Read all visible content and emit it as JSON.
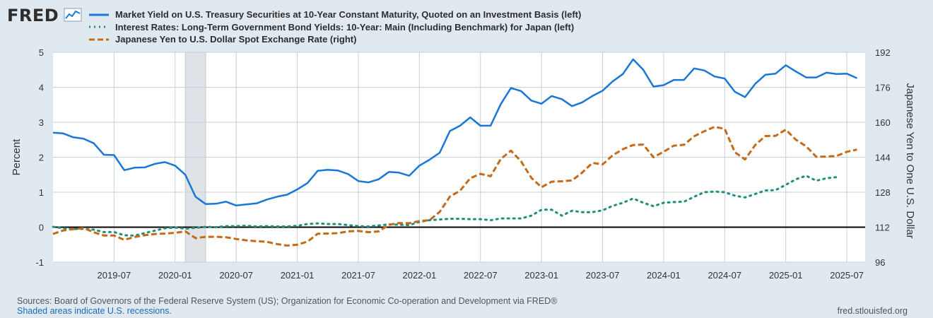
{
  "brand": {
    "logo_text": "FRED",
    "logo_icon": "trend-line-icon"
  },
  "legend": [
    {
      "label": "Market Yield on U.S. Treasury Securities at 10-Year Constant Maturity, Quoted on an Investment Basis (left)",
      "color": "#1a77d6",
      "style": "solid"
    },
    {
      "label": "Interest Rates: Long-Term Government Bond Yields: 10-Year: Main (Including Benchmark) for Japan (left)",
      "color": "#1f8f7c",
      "style": "dotted"
    },
    {
      "label": "Japanese Yen to U.S. Dollar Spot Exchange Rate (right)",
      "color": "#c46b17",
      "style": "dashed"
    }
  ],
  "footer": {
    "sources": "Sources: Board of Governors of the Federal Reserve System (US); Organization for Economic Co-operation and Development via FRED®",
    "recession_note": "Shaded areas indicate U.S. recessions.",
    "url": "fred.stlouisfed.org"
  },
  "chart_data": {
    "type": "line",
    "ylabel": "Percent",
    "y2label": "Japanese Yen to One U.S. Dollar",
    "ylim": [
      -1,
      5
    ],
    "y2lim": [
      96,
      192
    ],
    "yticks": [
      -1,
      0,
      1,
      2,
      3,
      4,
      5
    ],
    "y2ticks": [
      96,
      112,
      128,
      144,
      160,
      176,
      192
    ],
    "xlim": [
      "2019-01",
      "2025-08"
    ],
    "xticks": [
      "2019-07",
      "2020-01",
      "2020-07",
      "2021-01",
      "2021-07",
      "2022-01",
      "2022-07",
      "2023-01",
      "2023-07",
      "2024-01",
      "2024-07",
      "2025-01",
      "2025-07"
    ],
    "grid": true,
    "zero_line": 0,
    "recession": {
      "start": "2020-02",
      "end": "2020-04"
    },
    "series": [
      {
        "name": "Market Yield on U.S. Treasury Securities at 10-Year Constant Maturity, Quoted on an Investment Basis (left)",
        "axis": "left",
        "color": "#1a77d6",
        "style": "solid",
        "x": [
          "2019-01",
          "2019-02",
          "2019-03",
          "2019-04",
          "2019-05",
          "2019-06",
          "2019-07",
          "2019-08",
          "2019-09",
          "2019-10",
          "2019-11",
          "2019-12",
          "2020-01",
          "2020-02",
          "2020-03",
          "2020-04",
          "2020-05",
          "2020-06",
          "2020-07",
          "2020-08",
          "2020-09",
          "2020-10",
          "2020-11",
          "2020-12",
          "2021-01",
          "2021-02",
          "2021-03",
          "2021-04",
          "2021-05",
          "2021-06",
          "2021-07",
          "2021-08",
          "2021-09",
          "2021-10",
          "2021-11",
          "2021-12",
          "2022-01",
          "2022-02",
          "2022-03",
          "2022-04",
          "2022-05",
          "2022-06",
          "2022-07",
          "2022-08",
          "2022-09",
          "2022-10",
          "2022-11",
          "2022-12",
          "2023-01",
          "2023-02",
          "2023-03",
          "2023-04",
          "2023-05",
          "2023-06",
          "2023-07",
          "2023-08",
          "2023-09",
          "2023-10",
          "2023-11",
          "2023-12",
          "2024-01",
          "2024-02",
          "2024-03",
          "2024-04",
          "2024-05",
          "2024-06",
          "2024-07",
          "2024-08",
          "2024-09",
          "2024-10",
          "2024-11",
          "2024-12",
          "2025-01",
          "2025-02",
          "2025-03",
          "2025-04",
          "2025-05",
          "2025-06",
          "2025-07",
          "2025-08"
        ],
        "values": [
          2.7,
          2.68,
          2.57,
          2.53,
          2.4,
          2.07,
          2.06,
          1.63,
          1.7,
          1.71,
          1.81,
          1.86,
          1.76,
          1.5,
          0.87,
          0.66,
          0.67,
          0.73,
          0.62,
          0.65,
          0.68,
          0.79,
          0.87,
          0.93,
          1.08,
          1.26,
          1.61,
          1.64,
          1.62,
          1.52,
          1.32,
          1.28,
          1.37,
          1.58,
          1.56,
          1.47,
          1.76,
          1.93,
          2.13,
          2.75,
          2.9,
          3.14,
          2.9,
          2.9,
          3.52,
          3.98,
          3.89,
          3.62,
          3.53,
          3.75,
          3.66,
          3.46,
          3.57,
          3.75,
          3.9,
          4.17,
          4.38,
          4.8,
          4.5,
          4.02,
          4.06,
          4.21,
          4.21,
          4.54,
          4.48,
          4.31,
          4.25,
          3.87,
          3.72,
          4.1,
          4.36,
          4.39,
          4.63,
          4.45,
          4.28,
          4.28,
          4.42,
          4.38,
          4.39,
          4.26
        ]
      },
      {
        "name": "Interest Rates: Long-Term Government Bond Yields: 10-Year: Main (Including Benchmark) for Japan (left)",
        "axis": "left",
        "color": "#1f8f7c",
        "style": "dotted",
        "x": [
          "2019-01",
          "2019-02",
          "2019-03",
          "2019-04",
          "2019-05",
          "2019-06",
          "2019-07",
          "2019-08",
          "2019-09",
          "2019-10",
          "2019-11",
          "2019-12",
          "2020-01",
          "2020-02",
          "2020-03",
          "2020-04",
          "2020-05",
          "2020-06",
          "2020-07",
          "2020-08",
          "2020-09",
          "2020-10",
          "2020-11",
          "2020-12",
          "2021-01",
          "2021-02",
          "2021-03",
          "2021-04",
          "2021-05",
          "2021-06",
          "2021-07",
          "2021-08",
          "2021-09",
          "2021-10",
          "2021-11",
          "2021-12",
          "2022-01",
          "2022-02",
          "2022-03",
          "2022-04",
          "2022-05",
          "2022-06",
          "2022-07",
          "2022-08",
          "2022-09",
          "2022-10",
          "2022-11",
          "2022-12",
          "2023-01",
          "2023-02",
          "2023-03",
          "2023-04",
          "2023-05",
          "2023-06",
          "2023-07",
          "2023-08",
          "2023-09",
          "2023-10",
          "2023-11",
          "2023-12",
          "2024-01",
          "2024-02",
          "2024-03",
          "2024-04",
          "2024-05",
          "2024-06",
          "2024-07",
          "2024-08",
          "2024-09",
          "2024-10",
          "2024-11",
          "2024-12",
          "2025-01",
          "2025-02",
          "2025-03",
          "2025-04",
          "2025-05",
          "2025-06"
        ],
        "values": [
          0.01,
          -0.03,
          -0.05,
          -0.05,
          -0.07,
          -0.14,
          -0.14,
          -0.23,
          -0.24,
          -0.17,
          -0.1,
          -0.03,
          -0.01,
          -0.04,
          -0.02,
          0.01,
          0.0,
          0.03,
          0.03,
          0.04,
          0.02,
          0.03,
          0.02,
          0.02,
          0.04,
          0.09,
          0.11,
          0.09,
          0.09,
          0.06,
          0.03,
          0.02,
          0.05,
          0.08,
          0.07,
          0.06,
          0.15,
          0.2,
          0.22,
          0.24,
          0.24,
          0.23,
          0.23,
          0.2,
          0.25,
          0.25,
          0.25,
          0.33,
          0.5,
          0.5,
          0.33,
          0.47,
          0.43,
          0.43,
          0.48,
          0.61,
          0.7,
          0.82,
          0.7,
          0.6,
          0.7,
          0.72,
          0.73,
          0.87,
          1.0,
          1.02,
          1.0,
          0.9,
          0.85,
          0.95,
          1.05,
          1.06,
          1.21,
          1.37,
          1.47,
          1.33,
          1.4,
          1.43
        ]
      },
      {
        "name": "Japanese Yen to U.S. Dollar Spot Exchange Rate (right)",
        "axis": "right",
        "color": "#c46b17",
        "style": "dashed",
        "x": [
          "2019-01",
          "2019-02",
          "2019-03",
          "2019-04",
          "2019-05",
          "2019-06",
          "2019-07",
          "2019-08",
          "2019-09",
          "2019-10",
          "2019-11",
          "2019-12",
          "2020-01",
          "2020-02",
          "2020-03",
          "2020-04",
          "2020-05",
          "2020-06",
          "2020-07",
          "2020-08",
          "2020-09",
          "2020-10",
          "2020-11",
          "2020-12",
          "2021-01",
          "2021-02",
          "2021-03",
          "2021-04",
          "2021-05",
          "2021-06",
          "2021-07",
          "2021-08",
          "2021-09",
          "2021-10",
          "2021-11",
          "2021-12",
          "2022-01",
          "2022-02",
          "2022-03",
          "2022-04",
          "2022-05",
          "2022-06",
          "2022-07",
          "2022-08",
          "2022-09",
          "2022-10",
          "2022-11",
          "2022-12",
          "2023-01",
          "2023-02",
          "2023-03",
          "2023-04",
          "2023-05",
          "2023-06",
          "2023-07",
          "2023-08",
          "2023-09",
          "2023-10",
          "2023-11",
          "2023-12",
          "2024-01",
          "2024-02",
          "2024-03",
          "2024-04",
          "2024-05",
          "2024-06",
          "2024-07",
          "2024-08",
          "2024-09",
          "2024-10",
          "2024-11",
          "2024-12",
          "2025-01",
          "2025-02",
          "2025-03",
          "2025-04",
          "2025-05",
          "2025-06",
          "2025-07",
          "2025-08"
        ],
        "values": [
          108.9,
          110.5,
          111.1,
          111.6,
          109.7,
          108.2,
          108.2,
          106.2,
          107.5,
          108.3,
          108.9,
          109.1,
          109.4,
          110.1,
          107.0,
          107.6,
          107.6,
          107.4,
          106.6,
          106.0,
          105.6,
          105.3,
          104.3,
          103.6,
          104.0,
          105.4,
          109.0,
          109.1,
          109.3,
          110.1,
          110.3,
          109.7,
          110.1,
          113.1,
          113.9,
          113.8,
          114.8,
          115.2,
          119.0,
          126.0,
          128.7,
          134.4,
          136.4,
          135.3,
          143.2,
          147.0,
          142.1,
          134.6,
          130.3,
          132.8,
          133.0,
          133.4,
          137.0,
          141.4,
          140.7,
          144.9,
          147.7,
          149.6,
          149.8,
          144.0,
          146.5,
          149.3,
          149.7,
          153.6,
          155.9,
          157.9,
          157.0,
          146.3,
          143.0,
          149.6,
          153.7,
          153.8,
          156.6,
          152.0,
          149.0,
          144.2,
          144.3,
          144.6,
          146.5,
          147.5
        ]
      }
    ]
  }
}
